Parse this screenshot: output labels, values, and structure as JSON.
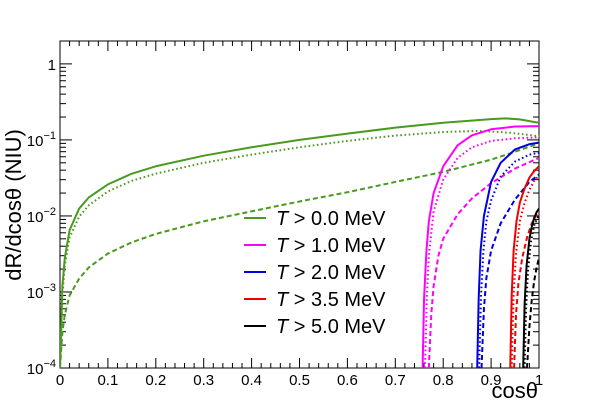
{
  "chart_data": {
    "type": "line",
    "title": "",
    "xlabel": "cosθ",
    "ylabel": "dR/dcosθ (NIU)",
    "xlim": [
      0,
      1
    ],
    "ylim": [
      0.0001,
      2
    ],
    "yscale": "log",
    "grid": false,
    "legend_position": "center-bottom",
    "x_ticks": [
      "0",
      "0.1",
      "0.2",
      "0.3",
      "0.4",
      "0.5",
      "0.6",
      "0.7",
      "0.8",
      "0.9",
      "1"
    ],
    "y_tick_labels": [
      {
        "value": 0.0001,
        "mantissa": "10",
        "exp": "−4"
      },
      {
        "value": 0.001,
        "mantissa": "10",
        "exp": "−3"
      },
      {
        "value": 0.01,
        "mantissa": "10",
        "exp": "−2"
      },
      {
        "value": 0.1,
        "mantissa": "10",
        "exp": "−1"
      },
      {
        "value": 1,
        "mantissa": "1",
        "exp": ""
      }
    ],
    "series": [
      {
        "name": "T > 0.0 MeV",
        "color": "#4a9a1e",
        "style": "solid",
        "x": [
          0.0,
          0.005,
          0.01,
          0.02,
          0.04,
          0.06,
          0.1,
          0.15,
          0.2,
          0.3,
          0.4,
          0.5,
          0.6,
          0.7,
          0.8,
          0.9,
          0.93,
          0.96,
          0.99,
          1.0
        ],
        "y": [
          0.0001,
          0.0012,
          0.0028,
          0.0065,
          0.0125,
          0.0175,
          0.026,
          0.036,
          0.045,
          0.062,
          0.08,
          0.1,
          0.121,
          0.145,
          0.168,
          0.188,
          0.192,
          0.186,
          0.172,
          0.168
        ]
      },
      {
        "name": "T > 0.0 MeV (dotted)",
        "color": "#4a9a1e",
        "style": "dotted",
        "x": [
          0.0,
          0.005,
          0.01,
          0.02,
          0.04,
          0.06,
          0.1,
          0.15,
          0.2,
          0.3,
          0.4,
          0.5,
          0.6,
          0.7,
          0.8,
          0.87,
          0.9,
          0.94,
          0.97,
          1.0
        ],
        "y": [
          0.0001,
          0.0009,
          0.0022,
          0.0052,
          0.0098,
          0.0138,
          0.021,
          0.029,
          0.036,
          0.05,
          0.064,
          0.08,
          0.097,
          0.114,
          0.127,
          0.131,
          0.129,
          0.124,
          0.118,
          0.112
        ]
      },
      {
        "name": "T > 0.0 MeV (dashed)",
        "color": "#4a9a1e",
        "style": "dashed",
        "x": [
          0.0,
          0.005,
          0.01,
          0.02,
          0.04,
          0.06,
          0.1,
          0.15,
          0.2,
          0.3,
          0.4,
          0.5,
          0.6,
          0.7,
          0.8,
          0.9,
          0.95,
          1.0
        ],
        "y": [
          0.0001,
          0.0003,
          0.0005,
          0.0009,
          0.0015,
          0.0021,
          0.0032,
          0.0045,
          0.0058,
          0.0085,
          0.0115,
          0.0155,
          0.0205,
          0.028,
          0.038,
          0.055,
          0.07,
          0.09
        ]
      },
      {
        "name": "T > 1.0 MeV",
        "color": "#ff00ff",
        "style": "solid",
        "x": [
          0.757,
          0.76,
          0.765,
          0.77,
          0.78,
          0.8,
          0.83,
          0.86,
          0.9,
          0.95,
          1.0
        ],
        "y": [
          0.0001,
          0.0008,
          0.0035,
          0.0085,
          0.02,
          0.045,
          0.085,
          0.115,
          0.138,
          0.15,
          0.152
        ]
      },
      {
        "name": "T > 1.0 MeV (dotted)",
        "color": "#ff00ff",
        "style": "dotted",
        "x": [
          0.762,
          0.766,
          0.77,
          0.78,
          0.8,
          0.83,
          0.86,
          0.9,
          0.95,
          1.0
        ],
        "y": [
          0.0001,
          0.0009,
          0.003,
          0.0115,
          0.03,
          0.058,
          0.08,
          0.097,
          0.105,
          0.108
        ]
      },
      {
        "name": "T > 1.0 MeV (dashed)",
        "color": "#ff00ff",
        "style": "dashed",
        "x": [
          0.77,
          0.775,
          0.78,
          0.79,
          0.8,
          0.83,
          0.86,
          0.9,
          0.95,
          1.0
        ],
        "y": [
          0.0001,
          0.0005,
          0.0012,
          0.003,
          0.005,
          0.0105,
          0.017,
          0.027,
          0.042,
          0.058
        ]
      },
      {
        "name": "T > 2.0 MeV",
        "color": "#0000dd",
        "style": "solid",
        "x": [
          0.871,
          0.874,
          0.878,
          0.885,
          0.9,
          0.92,
          0.95,
          0.98,
          1.0
        ],
        "y": [
          0.0001,
          0.0008,
          0.0035,
          0.01,
          0.028,
          0.05,
          0.075,
          0.088,
          0.092
        ]
      },
      {
        "name": "T > 2.0 MeV (dotted)",
        "color": "#0000dd",
        "style": "dotted",
        "x": [
          0.875,
          0.879,
          0.884,
          0.89,
          0.9,
          0.92,
          0.95,
          0.98,
          1.0
        ],
        "y": [
          0.0001,
          0.0009,
          0.0035,
          0.0085,
          0.016,
          0.033,
          0.052,
          0.064,
          0.068
        ]
      },
      {
        "name": "T > 2.0 MeV (dashed)",
        "color": "#0000dd",
        "style": "dashed",
        "x": [
          0.88,
          0.885,
          0.89,
          0.9,
          0.92,
          0.95,
          0.98,
          1.0
        ],
        "y": [
          0.0001,
          0.0006,
          0.0015,
          0.0035,
          0.008,
          0.0165,
          0.028,
          0.035
        ]
      },
      {
        "name": "T > 3.5 MeV",
        "color": "#ee0000",
        "style": "solid",
        "x": [
          0.94,
          0.943,
          0.947,
          0.953,
          0.96,
          0.97,
          0.98,
          0.99,
          1.0
        ],
        "y": [
          0.0001,
          0.0009,
          0.0035,
          0.0085,
          0.015,
          0.023,
          0.032,
          0.039,
          0.045
        ]
      },
      {
        "name": "T > 3.5 MeV (dotted)",
        "color": "#ee0000",
        "style": "dotted",
        "x": [
          0.943,
          0.947,
          0.952,
          0.96,
          0.97,
          0.98,
          0.99,
          1.0
        ],
        "y": [
          0.0001,
          0.0009,
          0.0032,
          0.0085,
          0.015,
          0.022,
          0.029,
          0.034
        ]
      },
      {
        "name": "T > 3.5 MeV (dashed)",
        "color": "#ee0000",
        "style": "dashed",
        "x": [
          0.948,
          0.952,
          0.957,
          0.965,
          0.975,
          0.985,
          1.0
        ],
        "y": [
          0.0001,
          0.0005,
          0.0013,
          0.0028,
          0.0052,
          0.008,
          0.012
        ]
      },
      {
        "name": "T > 5.0 MeV",
        "color": "#000000",
        "style": "solid",
        "x": [
          0.967,
          0.97,
          0.974,
          0.98,
          0.985,
          0.99,
          0.995,
          1.0
        ],
        "y": [
          0.0001,
          0.0007,
          0.0022,
          0.005,
          0.0072,
          0.0095,
          0.0112,
          0.0125
        ]
      },
      {
        "name": "T > 5.0 MeV (dotted)",
        "color": "#000000",
        "style": "dotted",
        "x": [
          0.97,
          0.973,
          0.977,
          0.983,
          0.99,
          0.995,
          1.0
        ],
        "y": [
          0.0001,
          0.0006,
          0.0019,
          0.0045,
          0.0075,
          0.009,
          0.0102
        ]
      },
      {
        "name": "T > 5.0 MeV (dashed)",
        "color": "#000000",
        "style": "dashed",
        "x": [
          0.975,
          0.98,
          0.985,
          0.99,
          0.995,
          1.0
        ],
        "y": [
          0.0001,
          0.00035,
          0.0008,
          0.0014,
          0.0021,
          0.0028
        ]
      }
    ],
    "legend": [
      {
        "var": "T",
        "text": " > 0.0 MeV",
        "color": "#4a9a1e"
      },
      {
        "var": "T",
        "text": " > 1.0 MeV",
        "color": "#ff00ff"
      },
      {
        "var": "T",
        "text": " > 2.0 MeV",
        "color": "#0000dd"
      },
      {
        "var": "T",
        "text": " > 3.5 MeV",
        "color": "#ee0000"
      },
      {
        "var": "T",
        "text": " > 5.0 MeV",
        "color": "#000000"
      }
    ]
  }
}
